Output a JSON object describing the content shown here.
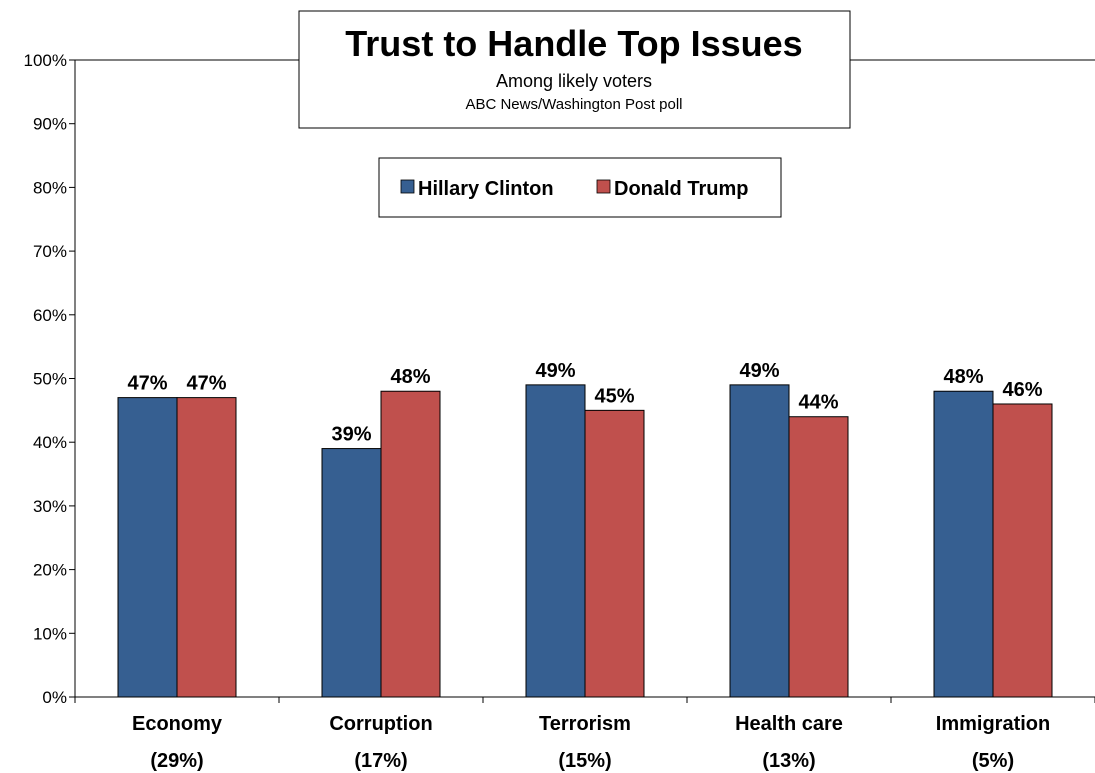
{
  "chart_data": {
    "type": "bar",
    "title": "Trust to Handle Top Issues",
    "subtitle": "Among likely voters",
    "source": "ABC News/Washington  Post poll",
    "categories": [
      "Economy",
      "Corruption",
      "Terrorism",
      "Health care",
      "Immigration"
    ],
    "category_shares": [
      "(29%)",
      "(17%)",
      "(15%)",
      "(13%)",
      "(5%)"
    ],
    "series": [
      {
        "name": "Hillary Clinton",
        "color": "#365F91",
        "values": [
          47,
          39,
          49,
          49,
          48
        ]
      },
      {
        "name": "Donald Trump",
        "color": "#C0504D",
        "values": [
          47,
          48,
          45,
          44,
          46
        ]
      }
    ],
    "ylim": [
      0,
      100
    ],
    "yticks": [
      0,
      10,
      20,
      30,
      40,
      50,
      60,
      70,
      80,
      90,
      100
    ],
    "ytick_suffix": "%",
    "value_suffix": "%",
    "grid": false,
    "legend_position": "top-center"
  }
}
